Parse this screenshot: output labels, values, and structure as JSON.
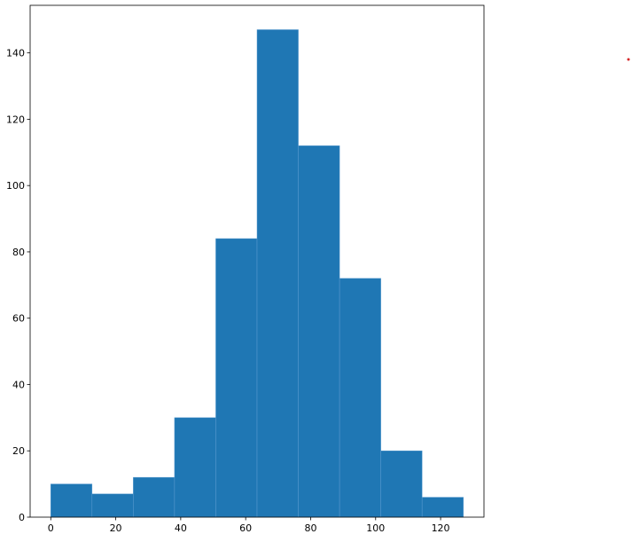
{
  "chart_data": {
    "type": "histogram",
    "bins": [
      0,
      12.7,
      25.4,
      38.1,
      50.8,
      63.5,
      76.2,
      88.9,
      101.6,
      114.3,
      127
    ],
    "values": [
      10,
      7,
      12,
      30,
      84,
      147,
      112,
      72,
      20,
      6
    ],
    "color": "#1f77b4",
    "xlim": [
      -6.35,
      133.35
    ],
    "xticks": [
      0,
      20,
      40,
      60,
      80,
      100,
      120
    ],
    "ylim": [
      0,
      154.35
    ],
    "yticks": [
      0,
      20,
      40,
      60,
      80,
      100,
      120,
      140
    ]
  }
}
